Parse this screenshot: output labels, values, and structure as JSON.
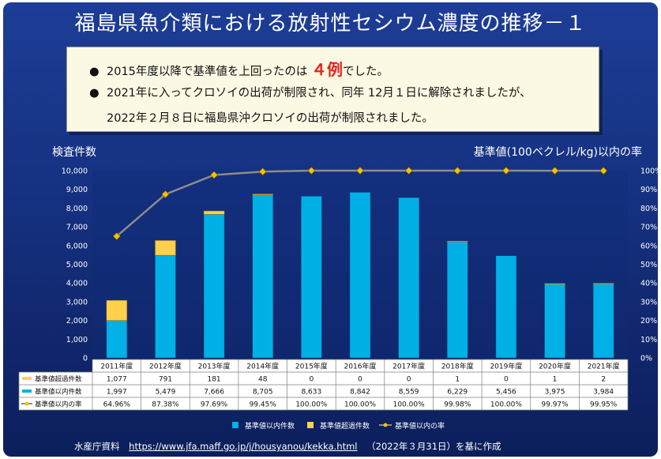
{
  "title": "福島県魚介類における放射性セシウム濃度の推移－１",
  "notes": {
    "b1_text": "2015年度以降で基準値を上回ったのは ",
    "b1_big": "４例",
    "b1_end": "でした。",
    "b2_line1": "2021年に入ってクロソイの出荷が制限され、同年 12月１日に解除されましたが、",
    "b2_line2": "2022年２月８日に福島県沖クロソイの出荷が制限されました。"
  },
  "left_axis_title": "検査件数",
  "right_axis_title": "基準値(100ベクレル/kg)以内の率",
  "source": {
    "prefix": "水産庁資料",
    "url": "https://www.jfa.maff.go.jp/j/housyanou/kekka.html",
    "suffix": "（2022年３月31日）を基に作成"
  },
  "colors": {
    "within": "#00b0e6",
    "over": "#ffd04c",
    "rate_line": "#8c8c8c",
    "rate_marker": "#f2c200"
  },
  "chart_data": {
    "type": "bar",
    "stacked": true,
    "categories": [
      "2011年度",
      "2012年度",
      "2013年度",
      "2014年度",
      "2015年度",
      "2016年度",
      "2017年度",
      "2018年度",
      "2019年度",
      "2020年度",
      "2021年度"
    ],
    "series": [
      {
        "name": "基準値以内件数",
        "values": [
          1997,
          5479,
          7666,
          8705,
          8633,
          8842,
          8559,
          6229,
          5456,
          3975,
          3984
        ]
      },
      {
        "name": "基準値超過件数",
        "values": [
          1077,
          791,
          181,
          48,
          0,
          0,
          0,
          1,
          0,
          1,
          2
        ]
      }
    ],
    "line_series": {
      "name": "基準値以内の率",
      "values": [
        64.96,
        87.38,
        97.69,
        99.45,
        100,
        100,
        100,
        99.98,
        100,
        99.97,
        99.95
      ],
      "axis": "right"
    },
    "ylim": [
      0,
      10000
    ],
    "y_ticks": [
      "0",
      "1,000",
      "2,000",
      "3,000",
      "4,000",
      "5,000",
      "6,000",
      "7,000",
      "8,000",
      "9,000",
      "10,000"
    ],
    "y2lim": [
      0,
      100
    ],
    "y2_ticks": [
      "0%",
      "10%",
      "20%",
      "30%",
      "40%",
      "50%",
      "60%",
      "70%",
      "80%",
      "90%",
      "100%"
    ],
    "grid": false,
    "legend": "bottom",
    "table_rows": [
      {
        "label": "基準値超過件数",
        "cells": [
          "1,077",
          "791",
          "181",
          "48",
          "0",
          "0",
          "0",
          "1",
          "0",
          "1",
          "2"
        ]
      },
      {
        "label": "基準値以内件数",
        "cells": [
          "1,997",
          "5,479",
          "7,666",
          "8,705",
          "8,633",
          "8,842",
          "8,559",
          "6,229",
          "5,456",
          "3,975",
          "3,984"
        ]
      },
      {
        "label": "基準値以内の率",
        "cells": [
          "64.96%",
          "87.38%",
          "97.69%",
          "99.45%",
          "100.00%",
          "100.00%",
          "100.00%",
          "99.98%",
          "100.00%",
          "99.97%",
          "99.95%"
        ]
      }
    ],
    "legend_labels": [
      "基準値以内件数",
      "基準値超過件数",
      "基準値以内の率"
    ]
  }
}
